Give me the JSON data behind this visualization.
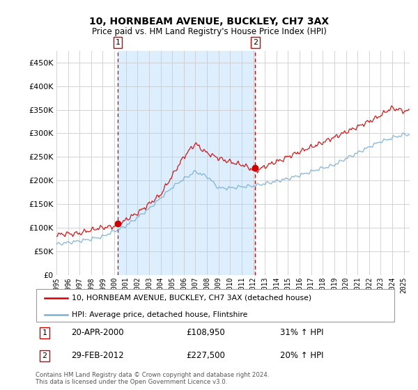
{
  "title": "10, HORNBEAM AVENUE, BUCKLEY, CH7 3AX",
  "subtitle": "Price paid vs. HM Land Registry's House Price Index (HPI)",
  "legend_line1": "10, HORNBEAM AVENUE, BUCKLEY, CH7 3AX (detached house)",
  "legend_line2": "HPI: Average price, detached house, Flintshire",
  "sale1_date": "20-APR-2000",
  "sale1_price": 108950,
  "sale1_label": "31% ↑ HPI",
  "sale2_date": "29-FEB-2012",
  "sale2_price": 227500,
  "sale2_label": "20% ↑ HPI",
  "footnote": "Contains HM Land Registry data © Crown copyright and database right 2024.\nThis data is licensed under the Open Government Licence v3.0.",
  "hpi_color": "#7bafd4",
  "price_color": "#cc0000",
  "highlight_color": "#ddeeff",
  "ylim": [
    0,
    475000
  ],
  "yticks": [
    0,
    50000,
    100000,
    150000,
    200000,
    250000,
    300000,
    350000,
    400000,
    450000
  ],
  "year_start": 1995,
  "year_end": 2025,
  "sale1_year": 2000.3,
  "sale2_year": 2012.17
}
